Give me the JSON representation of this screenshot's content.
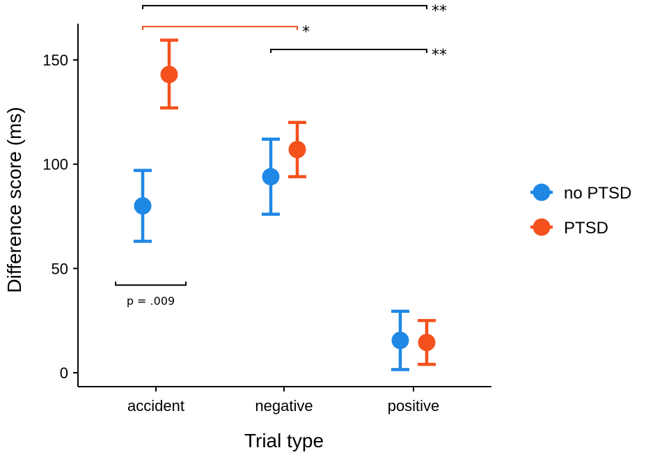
{
  "chart_data": {
    "type": "scatter",
    "title": "",
    "xlabel": "Trial type",
    "ylabel": "Difference score (ms)",
    "categories": [
      "accident",
      "negative",
      "positive"
    ],
    "ylim": [
      -5,
      168
    ],
    "yticks": [
      0,
      50,
      100,
      150
    ],
    "grid": false,
    "legend_position": "right",
    "series": [
      {
        "name": "no PTSD",
        "color": "#1f88e5",
        "values": [
          80,
          94,
          15.5
        ],
        "err_low": [
          63,
          76,
          1.5
        ],
        "err_high": [
          97,
          112,
          29.5
        ]
      },
      {
        "name": "PTSD",
        "color": "#f4511e",
        "values": [
          143,
          107,
          14.5
        ],
        "err_low": [
          127,
          94,
          4
        ],
        "err_high": [
          159.5,
          120,
          25
        ]
      }
    ],
    "annotations": {
      "brackets": [
        {
          "name": "accident-positive",
          "from_category": 0,
          "to_category": 2,
          "y": 176,
          "label": "**",
          "color": "#000000"
        },
        {
          "name": "ptsd-accident-negative",
          "from_category": 0,
          "to_category": 1,
          "y": 166,
          "label": "*",
          "color": "#f4511e"
        },
        {
          "name": "negative-positive",
          "from_category": 1,
          "to_category": 2,
          "y": 155,
          "label": "**",
          "color": "#000000"
        }
      ],
      "group_comparison": {
        "category": 0,
        "y": 42,
        "label": "p = .009"
      }
    }
  }
}
